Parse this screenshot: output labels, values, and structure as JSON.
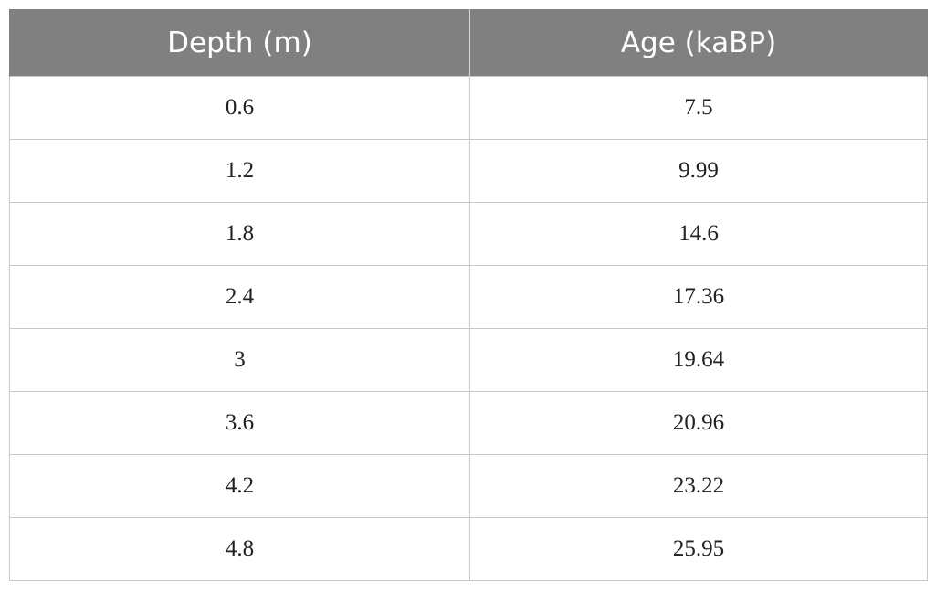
{
  "table": {
    "headers": [
      "Depth (m)",
      "Age (kaBP)"
    ],
    "rows": [
      [
        "0.6",
        "7.5"
      ],
      [
        "1.2",
        "9.99"
      ],
      [
        "1.8",
        "14.6"
      ],
      [
        "2.4",
        "17.36"
      ],
      [
        "3",
        "19.64"
      ],
      [
        "3.6",
        "20.96"
      ],
      [
        "4.2",
        "23.22"
      ],
      [
        "4.8",
        "25.95"
      ]
    ]
  }
}
